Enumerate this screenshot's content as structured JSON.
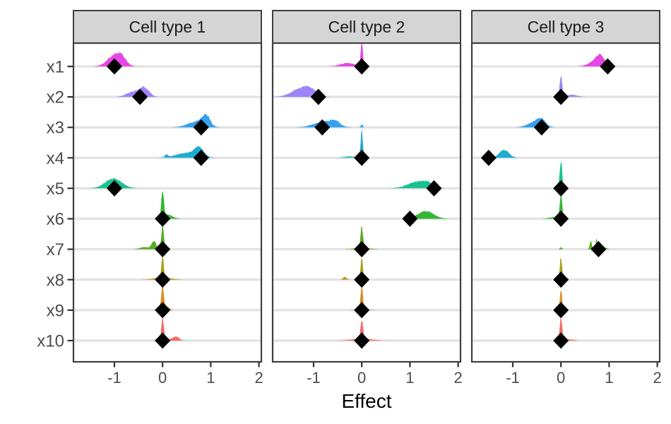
{
  "chart_data": {
    "type": "area",
    "subtype": "faceted-ridgeline-posterior-densities",
    "xlabel": "Effect",
    "x_range": [
      -1.85,
      2.05
    ],
    "x_ticks": [
      -1,
      0,
      1,
      2
    ],
    "x_tick_labels": [
      "-1",
      "0",
      "1",
      "2"
    ],
    "grid": "horizontal-major-only",
    "legend_position": "none",
    "variables": [
      {
        "name": "x1",
        "color": "#E441E4"
      },
      {
        "name": "x2",
        "color": "#9A7FF7"
      },
      {
        "name": "x3",
        "color": "#2F9DEB"
      },
      {
        "name": "x4",
        "color": "#17A8CF"
      },
      {
        "name": "x5",
        "color": "#14BE8E"
      },
      {
        "name": "x6",
        "color": "#2CB42C"
      },
      {
        "name": "x7",
        "color": "#52A81A"
      },
      {
        "name": "x8",
        "color": "#A79A12"
      },
      {
        "name": "x9",
        "color": "#D8891B"
      },
      {
        "name": "x10",
        "color": "#F4645C"
      }
    ],
    "facets": [
      {
        "label": "Cell type 1",
        "rows": [
          {
            "var": "x1",
            "diamond": -1.0,
            "bumps": [
              [
                -1.02,
                0.14,
                14
              ],
              [
                -0.85,
                0.1,
                11
              ]
            ]
          },
          {
            "var": "x2",
            "diamond": -0.47,
            "bumps": [
              [
                -0.62,
                0.13,
                7
              ],
              [
                -0.38,
                0.1,
                13
              ]
            ]
          },
          {
            "var": "x3",
            "diamond": 0.8,
            "bumps": [
              [
                0.7,
                0.18,
                8
              ],
              [
                0.9,
                0.08,
                15
              ]
            ]
          },
          {
            "var": "x4",
            "diamond": 0.8,
            "bumps": [
              [
                0.5,
                0.22,
                7
              ],
              [
                0.76,
                0.09,
                13
              ],
              [
                0.08,
                0.03,
                4
              ]
            ]
          },
          {
            "var": "x5",
            "diamond": -1.0,
            "bumps": [
              [
                -1.02,
                0.17,
                14
              ]
            ]
          },
          {
            "var": "x6",
            "diamond": 0.0,
            "bumps": [
              [
                0,
                0.025,
                38
              ],
              [
                0.1,
                0.1,
                6
              ]
            ]
          },
          {
            "var": "x7",
            "diamond": 0.0,
            "bumps": [
              [
                0,
                0.025,
                33
              ],
              [
                -0.18,
                0.05,
                11
              ],
              [
                -0.38,
                0.09,
                3
              ]
            ]
          },
          {
            "var": "x8",
            "diamond": 0.0,
            "bumps": [
              [
                0,
                0.022,
                33
              ],
              [
                0,
                0.18,
                3
              ]
            ]
          },
          {
            "var": "x9",
            "diamond": 0.0,
            "bumps": [
              [
                0,
                0.022,
                35
              ],
              [
                0.07,
                0.06,
                6
              ],
              [
                -0.07,
                0.05,
                4
              ]
            ]
          },
          {
            "var": "x10",
            "diamond": 0.0,
            "bumps": [
              [
                0,
                0.025,
                30
              ],
              [
                0.28,
                0.06,
                5
              ],
              [
                0.12,
                0.14,
                2
              ]
            ]
          }
        ]
      },
      {
        "label": "Cell type 2",
        "rows": [
          {
            "var": "x1",
            "diamond": 0.0,
            "bumps": [
              [
                0,
                0.022,
                36
              ],
              [
                -0.3,
                0.14,
                5
              ]
            ]
          },
          {
            "var": "x2",
            "diamond": -0.9,
            "bumps": [
              [
                -1.25,
                0.2,
                12
              ],
              [
                -1.05,
                0.12,
                6
              ]
            ]
          },
          {
            "var": "x3",
            "diamond": -0.82,
            "bumps": [
              [
                -0.8,
                0.2,
                8
              ],
              [
                -0.55,
                0.1,
                7
              ],
              [
                0,
                0.02,
                4
              ]
            ]
          },
          {
            "var": "x4",
            "diamond": 0.0,
            "bumps": [
              [
                0,
                0.022,
                38
              ],
              [
                -0.25,
                0.12,
                2
              ]
            ]
          },
          {
            "var": "x5",
            "diamond": 1.5,
            "bumps": [
              [
                1.15,
                0.2,
                9
              ],
              [
                1.38,
                0.12,
                5
              ]
            ]
          },
          {
            "var": "x6",
            "diamond": 1.0,
            "bumps": [
              [
                1.33,
                0.16,
                11
              ]
            ]
          },
          {
            "var": "x7",
            "diamond": 0.0,
            "bumps": [
              [
                0,
                0.025,
                30
              ],
              [
                0,
                0.15,
                2
              ]
            ]
          },
          {
            "var": "x8",
            "diamond": 0.0,
            "bumps": [
              [
                0,
                0.022,
                32
              ],
              [
                -0.35,
                0.035,
                4
              ]
            ]
          },
          {
            "var": "x9",
            "diamond": 0.0,
            "bumps": [
              [
                0,
                0.022,
                34
              ],
              [
                0,
                0.12,
                2
              ]
            ]
          },
          {
            "var": "x10",
            "diamond": 0.0,
            "bumps": [
              [
                0,
                0.025,
                26
              ],
              [
                0,
                0.2,
                3
              ]
            ]
          }
        ]
      },
      {
        "label": "Cell type 3",
        "rows": [
          {
            "var": "x1",
            "diamond": 0.97,
            "bumps": [
              [
                0.82,
                0.09,
                14
              ],
              [
                0.68,
                0.12,
                6
              ]
            ]
          },
          {
            "var": "x2",
            "diamond": 0.0,
            "bumps": [
              [
                0,
                0.025,
                30
              ],
              [
                0.22,
                0.12,
                3
              ]
            ]
          },
          {
            "var": "x3",
            "diamond": -0.4,
            "bumps": [
              [
                -0.42,
                0.1,
                12
              ],
              [
                -0.62,
                0.12,
                5
              ]
            ]
          },
          {
            "var": "x4",
            "diamond": -1.5,
            "bumps": [
              [
                -1.18,
                0.1,
                11
              ]
            ]
          },
          {
            "var": "x5",
            "diamond": 0.0,
            "bumps": [
              [
                0,
                0.025,
                40
              ]
            ]
          },
          {
            "var": "x6",
            "diamond": 0.0,
            "bumps": [
              [
                0,
                0.025,
                36
              ],
              [
                -0.15,
                0.1,
                2
              ]
            ]
          },
          {
            "var": "x7",
            "diamond": 0.78,
            "bumps": [
              [
                0.62,
                0.022,
                12
              ],
              [
                0.74,
                0.018,
                15
              ],
              [
                0.86,
                0.06,
                4
              ],
              [
                0,
                0.02,
                3
              ]
            ]
          },
          {
            "var": "x8",
            "diamond": 0.0,
            "bumps": [
              [
                0,
                0.022,
                34
              ]
            ]
          },
          {
            "var": "x9",
            "diamond": 0.0,
            "bumps": [
              [
                0,
                0.022,
                30
              ]
            ]
          },
          {
            "var": "x10",
            "diamond": 0.0,
            "bumps": [
              [
                0,
                0.025,
                32
              ],
              [
                0.15,
                0.1,
                2
              ]
            ]
          }
        ]
      }
    ]
  },
  "style": {
    "background": "#FFFFFF",
    "strip_bg": "#D5D5D5",
    "strip_border": "#3F3F3F",
    "strip_text_color": "#1A1A1A",
    "panel_border": "#3F3F3F",
    "grid_color": "#E4E4E4",
    "tick_color": "#333333",
    "axis_text_color": "#4D4D4D",
    "axis_title_color": "#000000",
    "marker_color": "#000000"
  }
}
